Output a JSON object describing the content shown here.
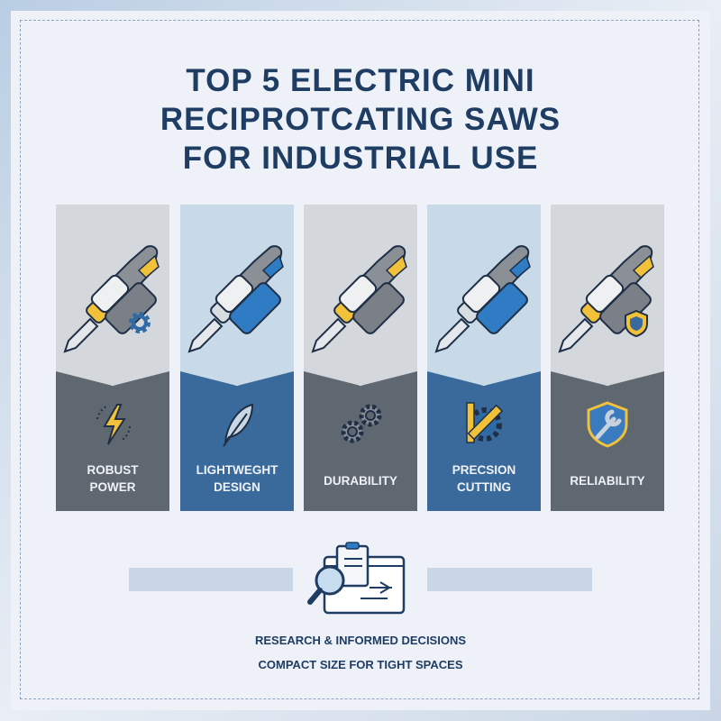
{
  "title": {
    "line1": "TOP 5 ELECTRIC MINI",
    "line2": "RECIPROTCATING SAWS",
    "line3": "FOR INDUSTRIAL USE"
  },
  "panels": [
    {
      "label1": "ROBUST",
      "label2": "POWER",
      "icon": "lightning-bolt-icon",
      "accent": "#f2c13a",
      "top_bg": "#d4d8dc",
      "bottom_bg": "#5f6770"
    },
    {
      "label1": "LIGHTWEGHT",
      "label2": "DESIGN",
      "icon": "feather-icon",
      "accent": "#2f7bc4",
      "top_bg": "#c8d9e8",
      "bottom_bg": "#3a6a9b"
    },
    {
      "label1": "DURABILITY",
      "label2": "",
      "icon": "gears-icon",
      "accent": "#f2c13a",
      "top_bg": "#d4d8dc",
      "bottom_bg": "#5f6770"
    },
    {
      "label1": "PRECSION",
      "label2": "CUTTING",
      "icon": "ruler-gear-icon",
      "accent": "#2f7bc4",
      "top_bg": "#c8d9e8",
      "bottom_bg": "#3a6a9b"
    },
    {
      "label1": "RELIABILITY",
      "label2": "",
      "icon": "shield-wrench-icon",
      "accent": "#f2c13a",
      "top_bg": "#d4d8dc",
      "bottom_bg": "#5f6770"
    }
  ],
  "footer": {
    "icon": "research-document-magnifier-icon",
    "line1": "RESEARCH & INFORMED DECISIONS",
    "line2": "COMPACT SIZE FOR TIGHT SPACES"
  }
}
